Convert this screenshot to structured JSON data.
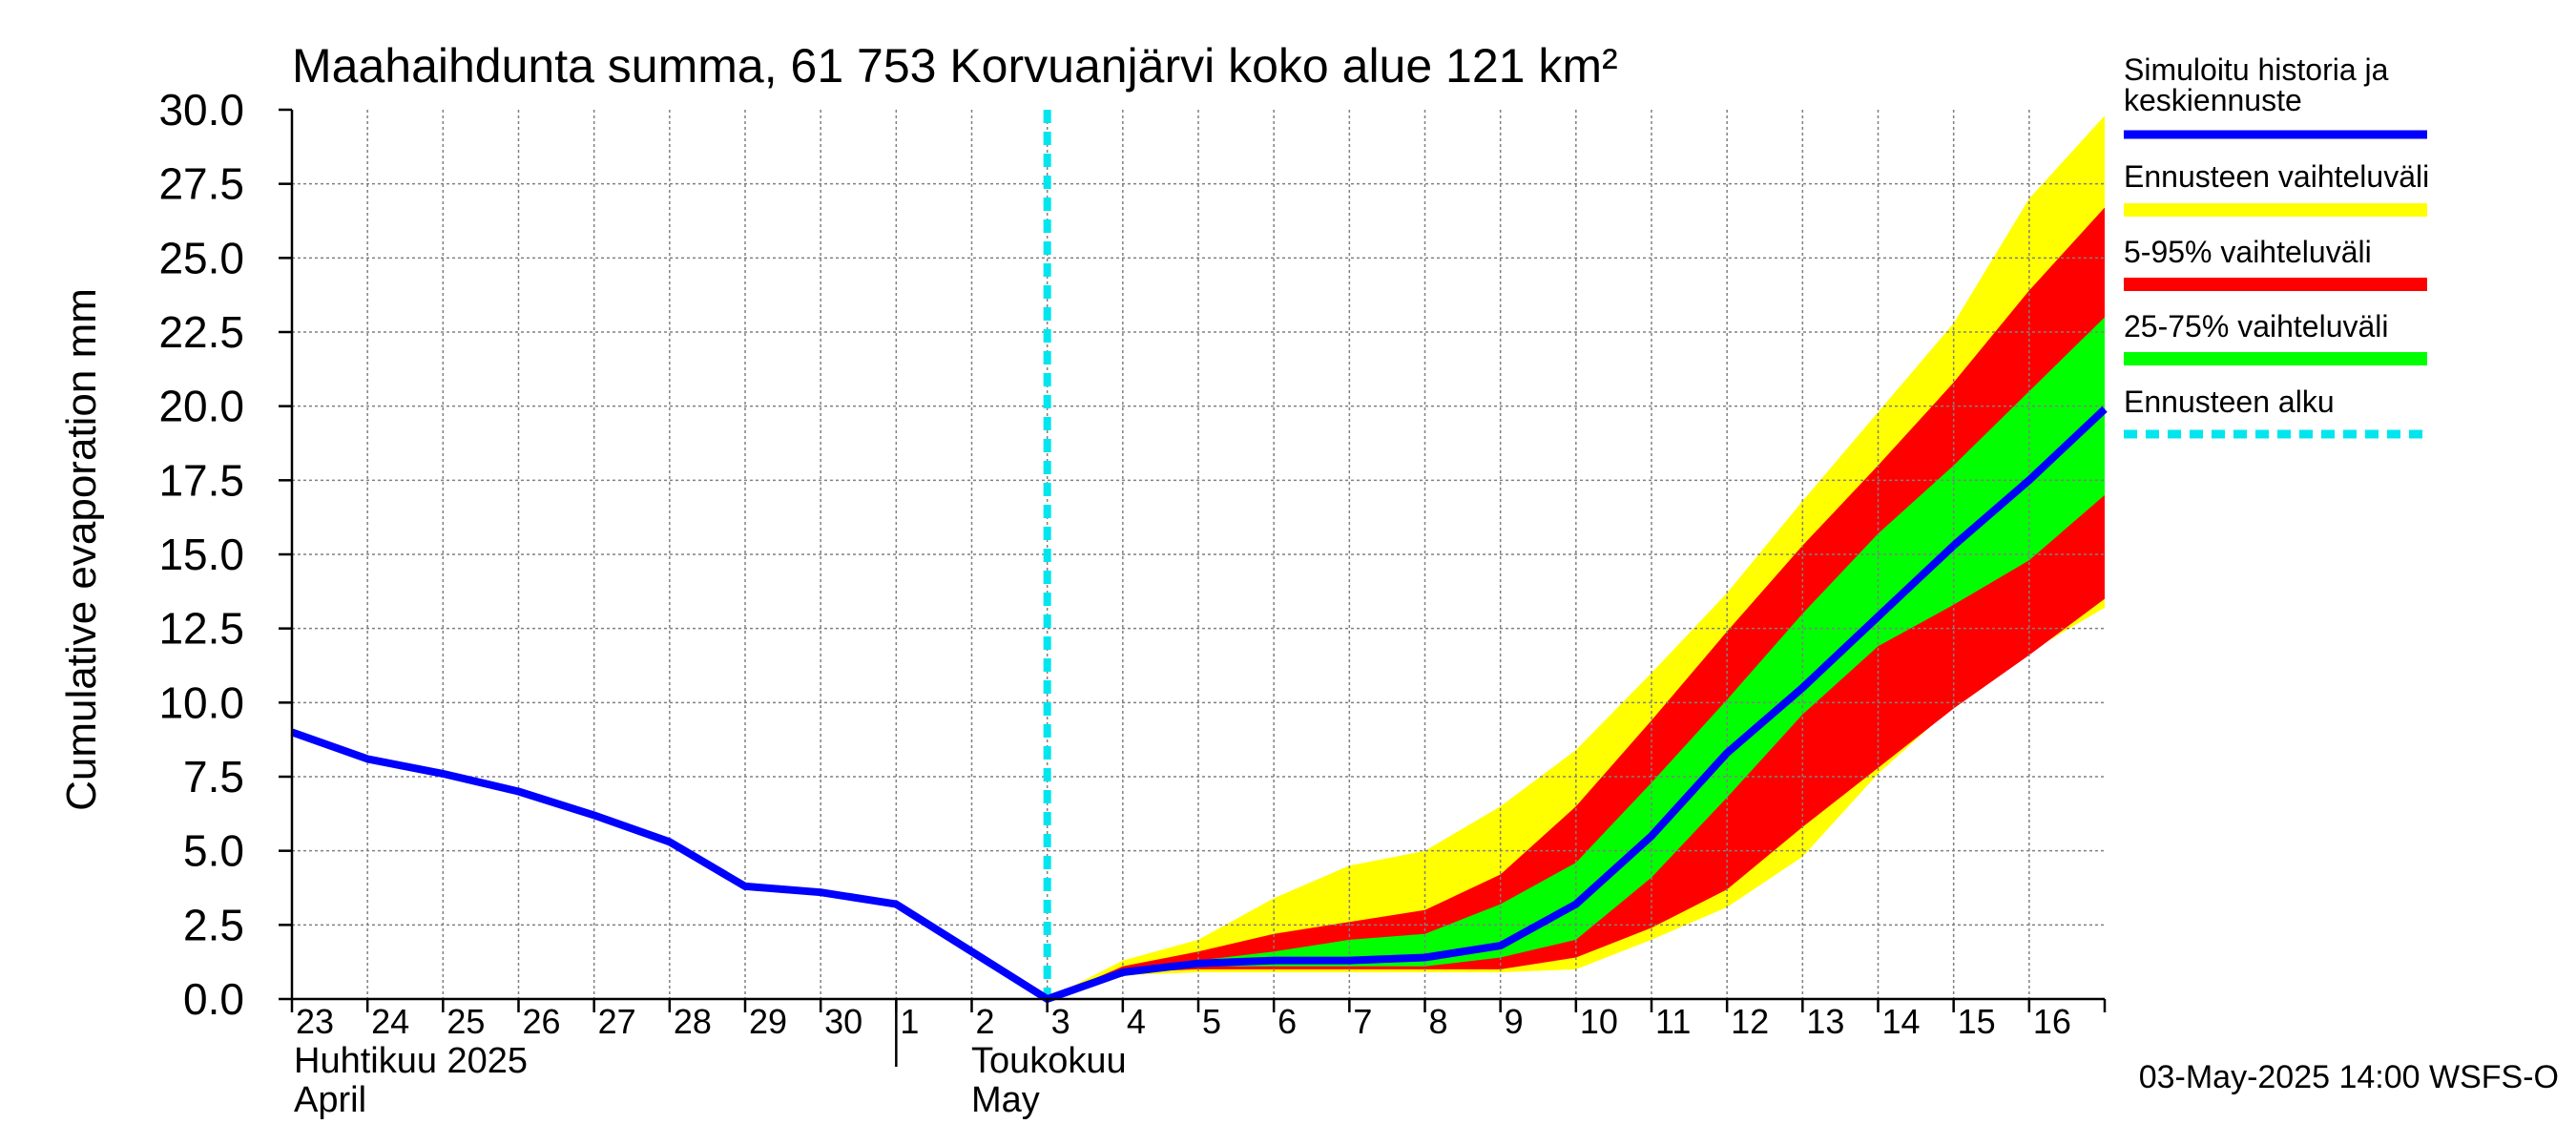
{
  "chart_data": {
    "type": "area",
    "title": "Maahaihdunta summa, 61 753 Korvuanjärvi koko alue 121 km²",
    "ylabel": "Cumulative evaporation   mm",
    "ylim": [
      0,
      30
    ],
    "yticks": [
      "0.0",
      "2.5",
      "5.0",
      "7.5",
      "10.0",
      "12.5",
      "15.0",
      "17.5",
      "20.0",
      "22.5",
      "25.0",
      "27.5",
      "30.0"
    ],
    "x_days": [
      "23",
      "24",
      "25",
      "26",
      "27",
      "28",
      "29",
      "30",
      "1",
      "2",
      "3",
      "4",
      "5",
      "6",
      "7",
      "8",
      "9",
      "10",
      "11",
      "12",
      "13",
      "14",
      "15",
      "16"
    ],
    "x_start": "2025-04-23",
    "x_end": "2025-05-17",
    "month_labels": {
      "april_fi": "Huhtikuu  2025",
      "april_en": "April",
      "may_fi": "Toukokuu",
      "may_en": "May"
    },
    "forecast_start": "2025-05-03 00:00",
    "series": [
      {
        "name": "Simuloitu historia ja keskiennuste",
        "color": "#0000ff",
        "x": [
          "2025-04-23",
          "2025-04-24",
          "2025-04-25",
          "2025-04-26",
          "2025-04-27",
          "2025-04-28",
          "2025-04-29",
          "2025-04-30",
          "2025-05-01",
          "2025-05-02",
          "2025-05-03",
          "2025-05-04",
          "2025-05-05",
          "2025-05-06",
          "2025-05-07",
          "2025-05-08",
          "2025-05-09",
          "2025-05-10",
          "2025-05-11",
          "2025-05-12",
          "2025-05-13",
          "2025-05-14",
          "2025-05-15",
          "2025-05-16",
          "2025-05-17"
        ],
        "values": [
          9.0,
          8.1,
          7.6,
          7.0,
          6.2,
          5.3,
          3.8,
          3.6,
          3.2,
          1.6,
          0.0,
          0.9,
          1.2,
          1.3,
          1.3,
          1.4,
          1.8,
          3.2,
          5.5,
          8.3,
          10.5,
          12.9,
          15.3,
          17.5,
          19.9
        ]
      }
    ],
    "bands": [
      {
        "name": "Ennusteen vaihteluväli",
        "color": "#ffff00",
        "x": [
          "2025-05-03",
          "2025-05-04",
          "2025-05-05",
          "2025-05-06",
          "2025-05-07",
          "2025-05-08",
          "2025-05-09",
          "2025-05-10",
          "2025-05-11",
          "2025-05-12",
          "2025-05-13",
          "2025-05-14",
          "2025-05-15",
          "2025-05-16",
          "2025-05-17"
        ],
        "upper": [
          0.0,
          1.3,
          2.0,
          3.4,
          4.5,
          5.0,
          6.5,
          8.4,
          11.0,
          13.7,
          16.8,
          19.8,
          22.8,
          27.0,
          29.8
        ],
        "lower": [
          0.0,
          0.8,
          0.9,
          0.9,
          0.9,
          0.9,
          0.9,
          1.0,
          2.0,
          3.1,
          4.8,
          7.6,
          9.9,
          11.7,
          13.2
        ]
      },
      {
        "name": "5-95% vaihteluväli",
        "color": "#ff0000",
        "x": [
          "2025-05-03",
          "2025-05-04",
          "2025-05-05",
          "2025-05-06",
          "2025-05-07",
          "2025-05-08",
          "2025-05-09",
          "2025-05-10",
          "2025-05-11",
          "2025-05-12",
          "2025-05-13",
          "2025-05-14",
          "2025-05-15",
          "2025-05-16",
          "2025-05-17"
        ],
        "upper": [
          0.0,
          1.1,
          1.6,
          2.2,
          2.6,
          3.0,
          4.2,
          6.5,
          9.4,
          12.4,
          15.3,
          18.0,
          20.8,
          23.9,
          26.7
        ],
        "lower": [
          0.0,
          0.9,
          1.0,
          1.0,
          1.0,
          1.0,
          1.0,
          1.4,
          2.4,
          3.7,
          5.8,
          7.8,
          9.8,
          11.6,
          13.5
        ]
      },
      {
        "name": "25-75% vaihteluväli",
        "color": "#00ff00",
        "x": [
          "2025-05-03",
          "2025-05-04",
          "2025-05-05",
          "2025-05-06",
          "2025-05-07",
          "2025-05-08",
          "2025-05-09",
          "2025-05-10",
          "2025-05-11",
          "2025-05-12",
          "2025-05-13",
          "2025-05-14",
          "2025-05-15",
          "2025-05-16",
          "2025-05-17"
        ],
        "upper": [
          0.0,
          1.0,
          1.3,
          1.6,
          2.0,
          2.2,
          3.2,
          4.6,
          7.3,
          10.1,
          13.0,
          15.7,
          18.0,
          20.5,
          23.0
        ],
        "lower": [
          0.0,
          0.9,
          1.1,
          1.1,
          1.1,
          1.1,
          1.4,
          2.0,
          4.1,
          6.8,
          9.6,
          11.9,
          13.3,
          14.8,
          17.0
        ]
      }
    ],
    "legend": {
      "placement": "right",
      "items": [
        {
          "label": "Simuloitu historia ja keskiennuste",
          "color": "#0000ff",
          "style": "line"
        },
        {
          "label": "Ennusteen vaihteluväli",
          "color": "#ffff00",
          "style": "band"
        },
        {
          "label": "5-95% vaihteluväli",
          "color": "#ff0000",
          "style": "band"
        },
        {
          "label": "25-75% vaihteluväli",
          "color": "#00ff00",
          "style": "band"
        },
        {
          "label": "Ennusteen alku",
          "color": "#00e5ee",
          "style": "dashed"
        }
      ]
    },
    "footer": "03-May-2025 14:00 WSFS-O",
    "grid": true
  }
}
